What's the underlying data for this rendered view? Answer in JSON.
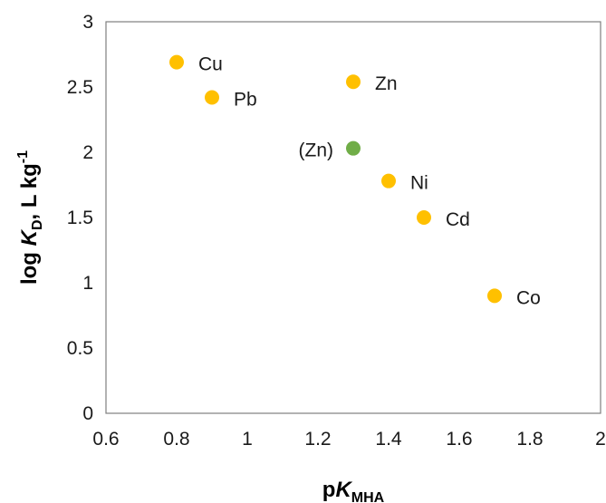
{
  "chart_data": {
    "type": "scatter",
    "xlabel": {
      "base": "p",
      "italic": "K",
      "sub": "MHA"
    },
    "ylabel": {
      "pre": "log ",
      "italic": "K",
      "sub": "D",
      "mid": ", L kg",
      "sup": "-1"
    },
    "xlim": [
      0.6,
      2
    ],
    "ylim": [
      0,
      3
    ],
    "xticks": [
      "0.6",
      "0.8",
      "1",
      "1.2",
      "1.4",
      "1.6",
      "1.8",
      "2"
    ],
    "yticks": [
      "0",
      "0.5",
      "1",
      "1.5",
      "2",
      "2.5",
      "3"
    ],
    "grid": false,
    "points": [
      {
        "label": "Cu",
        "x": 0.8,
        "y": 2.69,
        "color": "#FFC000",
        "label_side": "right"
      },
      {
        "label": "Pb",
        "x": 0.9,
        "y": 2.42,
        "color": "#FFC000",
        "label_side": "right"
      },
      {
        "label": "Zn",
        "x": 1.3,
        "y": 2.54,
        "color": "#FFC000",
        "label_side": "right"
      },
      {
        "label": "(Zn)",
        "x": 1.3,
        "y": 2.03,
        "color": "#70AD47",
        "label_side": "left"
      },
      {
        "label": "Ni",
        "x": 1.4,
        "y": 1.78,
        "color": "#FFC000",
        "label_side": "right"
      },
      {
        "label": "Cd",
        "x": 1.5,
        "y": 1.5,
        "color": "#FFC000",
        "label_side": "right"
      },
      {
        "label": "Co",
        "x": 1.7,
        "y": 0.9,
        "color": "#FFC000",
        "label_side": "right"
      }
    ]
  }
}
